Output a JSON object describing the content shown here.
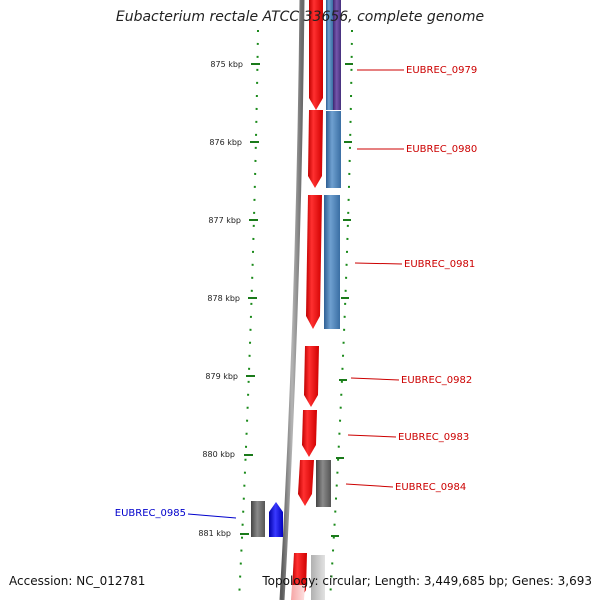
{
  "title": "Eubacterium rectale ATCC 33656, complete genome",
  "accession": "Accession: NC_012781",
  "summary": "Topology: circular; Length: 3,449,685 bp; Genes: 3,693",
  "ticks": [
    {
      "label": "875 kbp"
    },
    {
      "label": "876 kbp"
    },
    {
      "label": "877 kbp"
    },
    {
      "label": "878 kbp"
    },
    {
      "label": "879 kbp"
    },
    {
      "label": "880 kbp"
    },
    {
      "label": "881 kbp"
    }
  ],
  "gene_labels": [
    {
      "name": "EUBREC_0979",
      "color": "#cc0000"
    },
    {
      "name": "EUBREC_0980",
      "color": "#cc0000"
    },
    {
      "name": "EUBREC_0981",
      "color": "#cc0000"
    },
    {
      "name": "EUBREC_0982",
      "color": "#cc0000"
    },
    {
      "name": "EUBREC_0983",
      "color": "#cc0000"
    },
    {
      "name": "EUBREC_0984",
      "color": "#cc0000"
    },
    {
      "name": "EUBREC_0985",
      "color": "#0000cc"
    }
  ],
  "colors": {
    "cds_forward": "#ff0000",
    "cds_reverse": "#0000ff",
    "cog_steelblue": "#4f83b8",
    "cog_purple": "#5a3a8c",
    "cog_gray": "#6b6b6b",
    "backbone": "#888888",
    "tick": "#1a7a1a"
  }
}
